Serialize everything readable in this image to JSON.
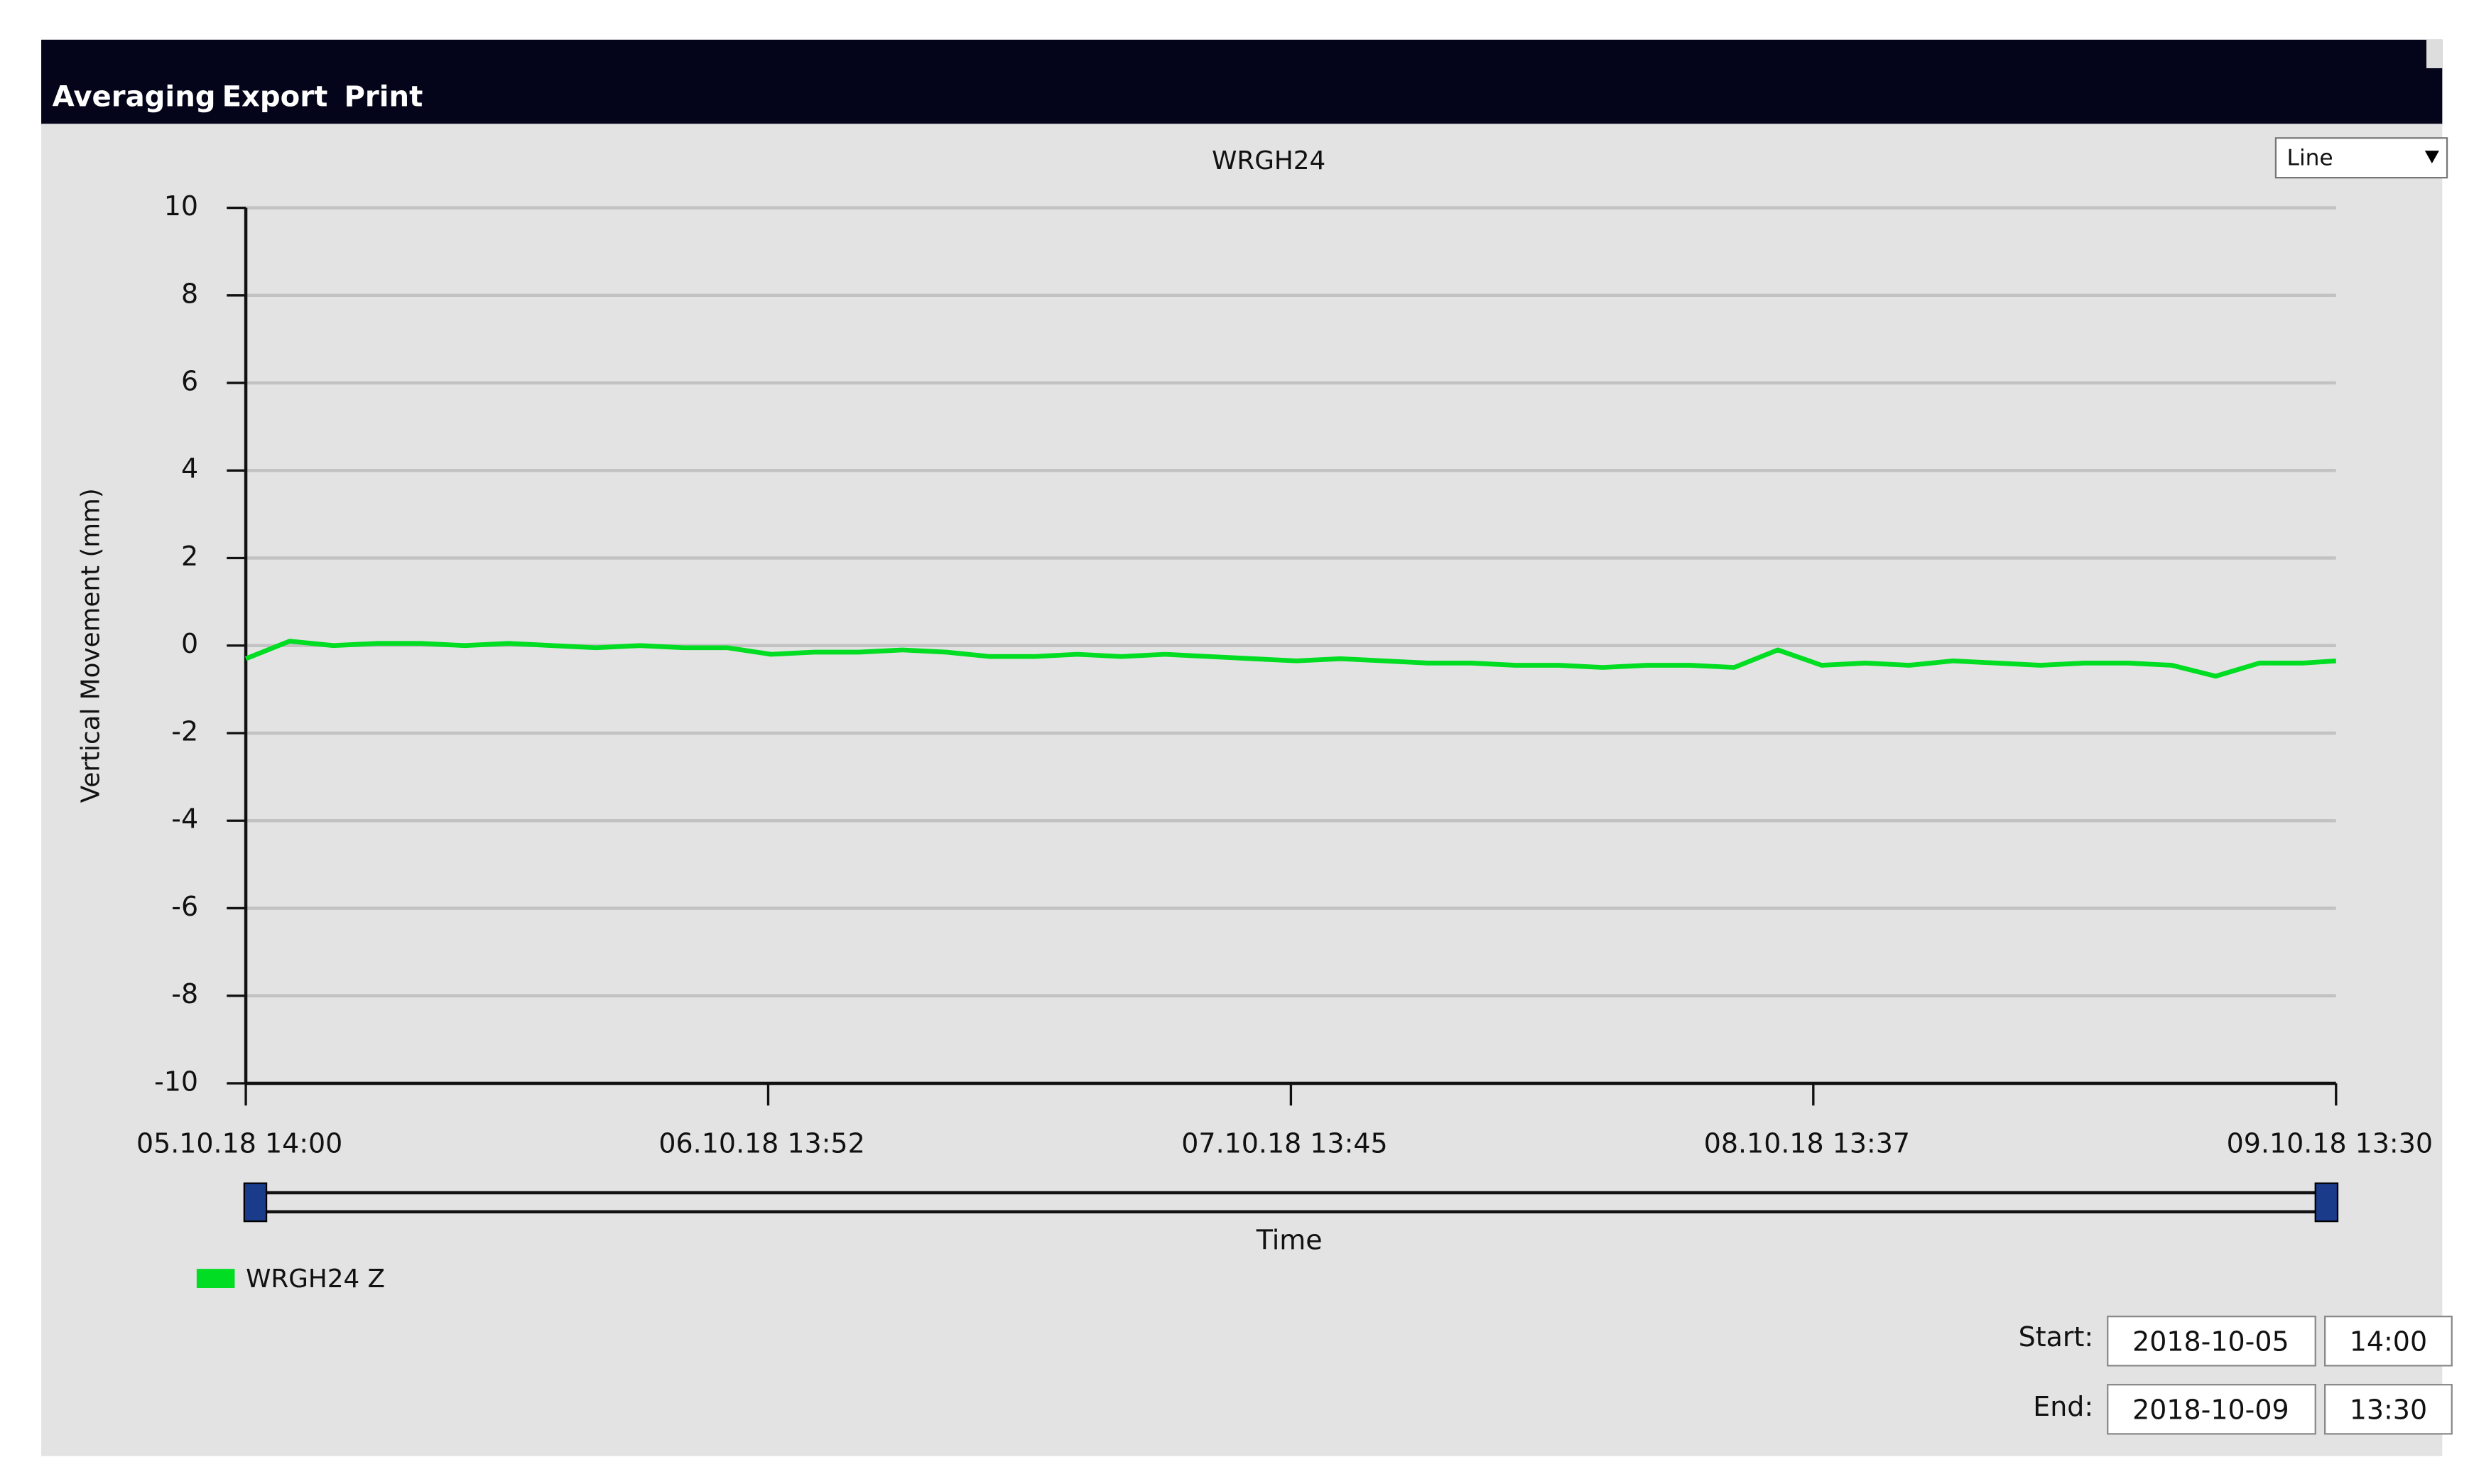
{
  "menu": [
    "Averaging",
    "Export",
    "Print"
  ],
  "chart_type_selector": "Line",
  "chart_data": {
    "type": "line",
    "title": "WRGH24",
    "y_label": "Vertical Movement (mm)",
    "x_label": "Time",
    "ylim": [
      -10,
      10
    ],
    "yticks": [
      -10,
      -8,
      -6,
      -4,
      -2,
      0,
      2,
      4,
      6,
      8,
      10
    ],
    "xlim": [
      "05.10.18 14:00",
      "09.10.18 13:30"
    ],
    "xticks": [
      "05.10.18 14:00",
      "06.10.18 13:52",
      "07.10.18 13:45",
      "08.10.18 13:37",
      "09.10.18 13:30"
    ],
    "grid": true,
    "x": [
      "05.10.18 14:00",
      "05.10.18 16:00",
      "05.10.18 18:00",
      "05.10.18 20:00",
      "05.10.18 22:00",
      "06.10.18 00:00",
      "06.10.18 02:00",
      "06.10.18 04:00",
      "06.10.18 06:00",
      "06.10.18 08:00",
      "06.10.18 10:00",
      "06.10.18 12:00",
      "06.10.18 14:00",
      "06.10.18 16:00",
      "06.10.18 18:00",
      "06.10.18 20:00",
      "06.10.18 22:00",
      "07.10.18 00:00",
      "07.10.18 02:00",
      "07.10.18 04:00",
      "07.10.18 06:00",
      "07.10.18 08:00",
      "07.10.18 10:00",
      "07.10.18 12:00",
      "07.10.18 14:00",
      "07.10.18 16:00",
      "07.10.18 18:00",
      "07.10.18 20:00",
      "07.10.18 22:00",
      "08.10.18 00:00",
      "08.10.18 02:00",
      "08.10.18 04:00",
      "08.10.18 06:00",
      "08.10.18 08:00",
      "08.10.18 10:00",
      "08.10.18 12:00",
      "08.10.18 14:00",
      "08.10.18 16:00",
      "08.10.18 18:00",
      "08.10.18 20:00",
      "08.10.18 22:00",
      "09.10.18 00:00",
      "09.10.18 02:00",
      "09.10.18 04:00",
      "09.10.18 06:00",
      "09.10.18 08:00",
      "09.10.18 10:00",
      "09.10.18 12:00",
      "09.10.18 13:30"
    ],
    "series": [
      {
        "name": "WRGH24 Z",
        "color": "#00dd22",
        "values": [
          -0.3,
          0.1,
          0.0,
          0.05,
          0.05,
          0.0,
          0.05,
          0.0,
          -0.05,
          0.0,
          -0.05,
          -0.05,
          -0.2,
          -0.15,
          -0.15,
          -0.1,
          -0.15,
          -0.25,
          -0.25,
          -0.2,
          -0.25,
          -0.2,
          -0.25,
          -0.3,
          -0.35,
          -0.3,
          -0.35,
          -0.4,
          -0.4,
          -0.45,
          -0.45,
          -0.5,
          -0.45,
          -0.45,
          -0.5,
          -0.1,
          -0.45,
          -0.4,
          -0.45,
          -0.35,
          -0.4,
          -0.45,
          -0.4,
          -0.4,
          -0.45,
          -0.7,
          -0.4,
          -0.4,
          -0.35
        ]
      }
    ]
  },
  "range": {
    "start_label": "Start:",
    "start_date": "2018-10-05",
    "start_time": "14:00",
    "end_label": "End:",
    "end_date": "2018-10-09",
    "end_time": "13:30"
  }
}
